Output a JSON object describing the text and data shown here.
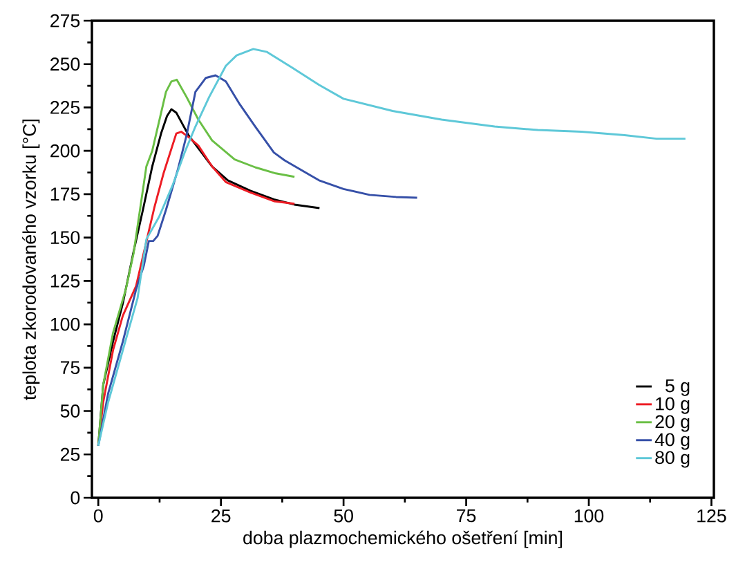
{
  "chart_data": {
    "type": "line",
    "xlabel": "doba plazmochemického ošetření [min]",
    "ylabel": "teplota zkorodovaného vzorku [°C]",
    "xlim": [
      -1.3,
      125.5
    ],
    "ylim": [
      0,
      275
    ],
    "xticks": [
      0,
      25,
      50,
      75,
      100,
      125
    ],
    "yticks": [
      0,
      25,
      50,
      75,
      100,
      125,
      150,
      175,
      200,
      225,
      250,
      275
    ],
    "legend": "bottom right",
    "line_style": "solid",
    "marker": "none",
    "grid": false,
    "series": [
      {
        "name": "5 g",
        "color": "#000000",
        "x": [
          0,
          1,
          3,
          5,
          7.2,
          9.1,
          11,
          12.8,
          14,
          14.9,
          15.9,
          18.4,
          23.2,
          26.4,
          31,
          35.8,
          40,
          45.1
        ],
        "values": [
          30,
          65,
          90,
          112,
          142,
          166,
          191,
          210,
          220,
          224,
          222,
          209,
          191,
          183,
          177,
          172,
          169,
          167
        ]
      },
      {
        "name": "10 g",
        "color": "#ed1c24",
        "x": [
          0,
          1,
          3,
          5,
          7.7,
          10,
          11.4,
          13.3,
          15.9,
          16.9,
          18.4,
          20.4,
          23.2,
          26,
          31,
          35.8,
          40
        ],
        "values": [
          30,
          55,
          85,
          105,
          122,
          150,
          167,
          187,
          210,
          211,
          208,
          203,
          191,
          182,
          176,
          171,
          169.5
        ]
      },
      {
        "name": "20 g",
        "color": "#6abf45",
        "x": [
          0,
          1,
          3,
          5.6,
          7.2,
          9.8,
          11,
          13.8,
          14.9,
          16,
          18,
          20.4,
          23.2,
          27.8,
          32,
          36.2,
          40
        ],
        "values": [
          30,
          65,
          95,
          120,
          141,
          191,
          200,
          234,
          240,
          241,
          231,
          218,
          206,
          195,
          190.5,
          187,
          185
        ]
      },
      {
        "name": "40 g",
        "color": "#3650a8",
        "x": [
          0,
          2,
          5,
          7.7,
          9.3,
          10.3,
          11.2,
          12.1,
          13.8,
          16.2,
          18,
          19.8,
          21.9,
          23.9,
          26,
          28.8,
          32,
          35.8,
          38,
          45,
          50,
          55.3,
          60.7,
          65
        ],
        "values": [
          30,
          60,
          90,
          120,
          134,
          148,
          148,
          151,
          166,
          189,
          209,
          234,
          242,
          243.5,
          240,
          227,
          214,
          199,
          194.5,
          183,
          178,
          174.6,
          173.4,
          173
        ]
      },
      {
        "name": "80 g",
        "color": "#5ec8d8",
        "x": [
          0,
          2,
          5,
          8,
          9.8,
          12.4,
          15.2,
          17.6,
          19.8,
          22.6,
          26,
          28.2,
          31.6,
          34.4,
          39.5,
          45,
          50,
          60,
          70,
          80.8,
          89.6,
          98.5,
          107.3,
          113.8,
          119.7
        ],
        "values": [
          30,
          55,
          85,
          115,
          149,
          162,
          180.5,
          199,
          214,
          231,
          249,
          255,
          258.7,
          257,
          248,
          238,
          230,
          223,
          218,
          214,
          212,
          211,
          209,
          207,
          207
        ]
      }
    ]
  }
}
